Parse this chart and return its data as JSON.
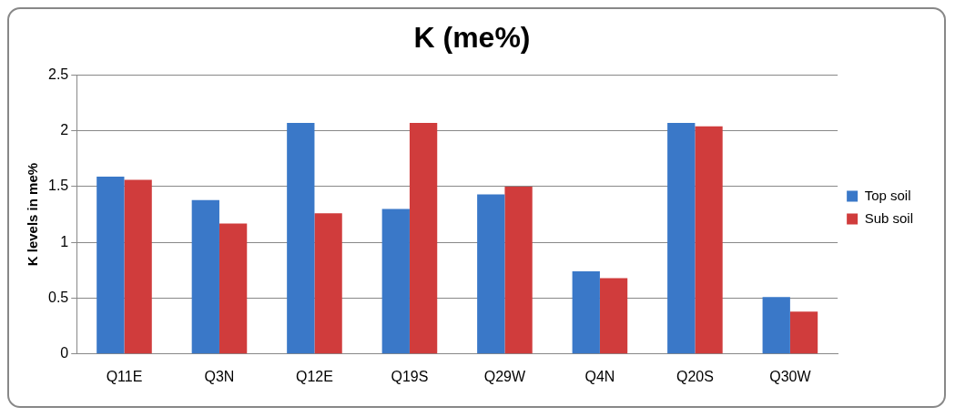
{
  "chart_data": {
    "type": "bar",
    "title": "K (me%)",
    "ylabel": "K levels in me%",
    "categories": [
      "Q11E",
      "Q3N",
      "Q12E",
      "Q19S",
      "Q29W",
      "Q4N",
      "Q20S",
      "Q30W"
    ],
    "series": [
      {
        "name": "Top soil",
        "color": "#3a78c8",
        "values": [
          1.59,
          1.38,
          2.07,
          1.3,
          1.43,
          0.74,
          2.07,
          0.51
        ]
      },
      {
        "name": "Sub soil",
        "color": "#d03c3c",
        "values": [
          1.56,
          1.17,
          1.26,
          2.07,
          1.5,
          0.68,
          2.04,
          0.38
        ]
      }
    ],
    "ylim": [
      0,
      2.5
    ],
    "yticks": [
      0,
      0.5,
      1,
      1.5,
      2,
      2.5
    ],
    "grid": "y",
    "legend": "right"
  }
}
